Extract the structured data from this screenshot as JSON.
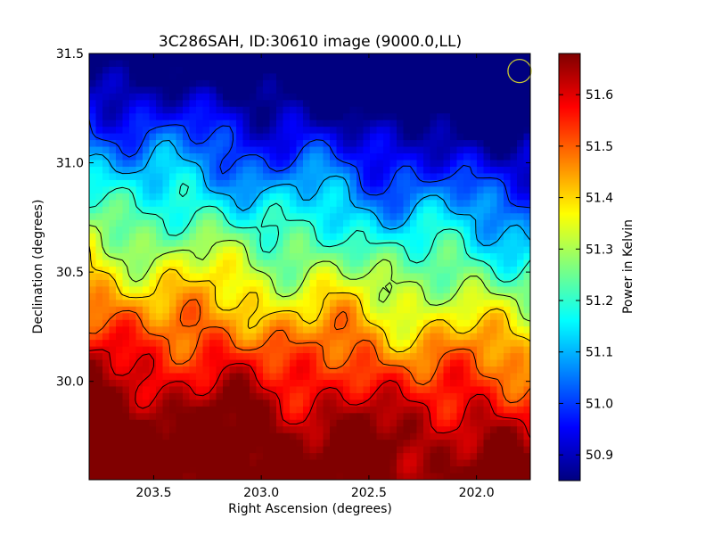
{
  "chart_data": {
    "type": "heatmap",
    "title": "3C286SAH, ID:30610 image (9000.0,LL)",
    "xlabel": "Right Ascension (degrees)",
    "ylabel": "Declination (degrees)",
    "xlim": [
      203.8,
      201.75
    ],
    "ylim": [
      29.55,
      31.5
    ],
    "x_ticks": [
      {
        "value": 203.5,
        "label": "203.5"
      },
      {
        "value": 203.0,
        "label": "203.0"
      },
      {
        "value": 202.5,
        "label": "202.5"
      },
      {
        "value": 202.0,
        "label": "202.0"
      }
    ],
    "y_ticks": [
      {
        "value": 31.5,
        "label": "31.5"
      },
      {
        "value": 31.0,
        "label": "31.0"
      },
      {
        "value": 30.5,
        "label": "30.5"
      },
      {
        "value": 30.0,
        "label": "30.0"
      }
    ],
    "colorbar": {
      "label": "Power in Kelvin",
      "range": [
        50.85,
        51.68
      ],
      "ticks": [
        {
          "value": 51.6,
          "label": "51.6"
        },
        {
          "value": 51.5,
          "label": "51.5"
        },
        {
          "value": 51.4,
          "label": "51.4"
        },
        {
          "value": 51.3,
          "label": "51.3"
        },
        {
          "value": 51.2,
          "label": "51.2"
        },
        {
          "value": 51.1,
          "label": "51.1"
        },
        {
          "value": 51.0,
          "label": "51.0"
        },
        {
          "value": 50.9,
          "label": "50.9"
        }
      ],
      "colormap": "jet"
    },
    "contour_levels": [
      51.0,
      51.1,
      51.2,
      51.3,
      51.4,
      51.5,
      51.6
    ],
    "beam_marker": {
      "ra": 201.8,
      "dec": 31.42,
      "color": "#c8c832"
    },
    "grid": false
  }
}
